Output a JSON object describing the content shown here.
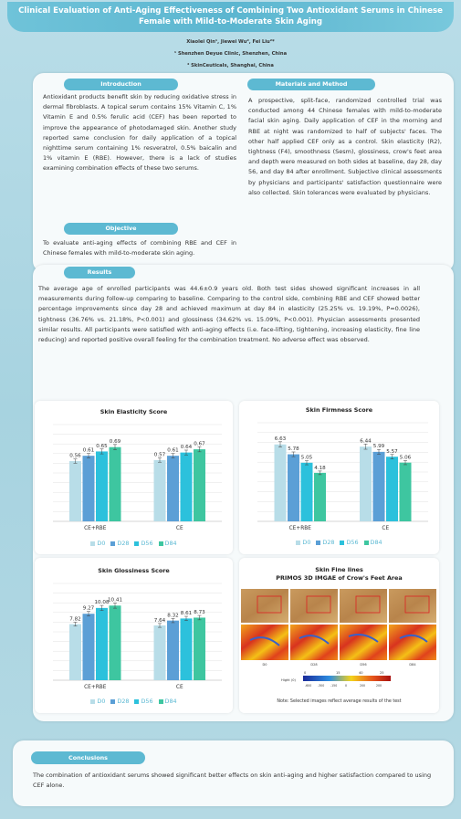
{
  "title_line1": "Clinical Evaluation of Anti-Aging Effectiveness of Combining Two Antioxidant Serums in Chinese",
  "title_line2": "Female with Mild-to-Moderate Skin Aging",
  "authors": "Xiaolei Qin¹, Jiewei Wu², Fei Liu²*",
  "affil1": "¹ Shenzhen Deyue Clinic, Shenzhen, China",
  "affil2": "² SkinCeuticals, Shanghai, China",
  "intro_label": "Introduction",
  "intro_text": "Antioxidant products benefit skin by reducing oxidative stress in dermal fibroblasts. A topical serum contains 15% Vitamin C, 1% Vitamin E and 0.5% ferulic acid (CEF) has been reported to improve the appearance of photodamaged skin. Another study reported same conclusion for daily application of a topical nighttime serum containing 1% resveratrol, 0.5% baicalin and 1% vitamin E (RBE). However, there is a lack of studies examining combination effects of these two serums.",
  "objective_label": "Objective",
  "objective_text": "To evaluate anti-aging effects of combining RBE and CEF in Chinese females with mild-to-moderate skin aging.",
  "methods_label": "Materials and Method",
  "methods_text": "A prospective, split-face, randomized controlled trial was conducted among 44 Chinese females with mild-to-moderate facial skin aging. Daily application of CEF in the morning and RBE at night was randomized to half of subjects' faces. The other half applied CEF only as a control. Skin elasticity (R2), tightness (F4), smoothness (Sesm), glossiness, crow's feet area and depth were measured on both sides at baseline, day 28, day 56, and day 84 after enrollment. Subjective clinical assessments by physicians and participants' satisfaction questionnaire were also collected. Skin tolerances were evaluated by physicians.",
  "results_label": "Results",
  "results_text": "The average age of enrolled participants was 44.6±0.9 years old. Both test sides showed significant increases in all measurements during follow-up comparing to baseline. Comparing to the control side, combining RBE and CEF showed better percentage improvements since day 28 and achieved maximum at day 84 in elasticity (25.25% vs. 19.19%, P=0.0026), tightness (36.76% vs. 21.18%, P<0.001) and glossiness (34.62% vs. 15.09%, P<0.001). Physician assessments presented similar results. All participants were satisfied with anti-aging effects (i.e. face-lifting, tightening, increasing elasticity, fine line reducing) and reported positive overall feeling for the combination treatment. No adverse effect was observed.",
  "colors": {
    "D0": "#b8dde8",
    "D28": "#5b9fd6",
    "D56": "#2cc1dc",
    "D84": "#3ec6a0"
  },
  "legend": [
    "D0",
    "D28",
    "D56",
    "D84"
  ],
  "chart_data": [
    {
      "type": "bar",
      "title": "Skin Elasticity Score",
      "categories": [
        "CE+RBE",
        "CE"
      ],
      "series": [
        {
          "name": "D0",
          "values": [
            0.56,
            0.57
          ]
        },
        {
          "name": "D28",
          "values": [
            0.61,
            0.61
          ]
        },
        {
          "name": "D56",
          "values": [
            0.65,
            0.64
          ]
        },
        {
          "name": "D84",
          "values": [
            0.69,
            0.67
          ]
        }
      ],
      "labels": [
        [
          "0.56",
          "0.61",
          "0.65",
          "0.69"
        ],
        [
          "0.57",
          "0.61",
          "0.64",
          "0.67"
        ]
      ],
      "ylim": [
        0,
        0.9
      ]
    },
    {
      "type": "bar",
      "title": "Skin Firmness Score",
      "categories": [
        "CE+RBE",
        "CE"
      ],
      "series": [
        {
          "name": "D0",
          "values": [
            6.63,
            6.44
          ]
        },
        {
          "name": "D28",
          "values": [
            5.78,
            5.99
          ]
        },
        {
          "name": "D56",
          "values": [
            5.05,
            5.57
          ]
        },
        {
          "name": "D84",
          "values": [
            4.18,
            5.06
          ]
        }
      ],
      "labels": [
        [
          "6.63",
          "5.78",
          "5.05",
          "4.18"
        ],
        [
          "6.44",
          "5.99",
          "5.57",
          "5.06"
        ]
      ],
      "ylim": [
        0,
        8.5
      ]
    },
    {
      "type": "bar",
      "title": "Skin Glossiness Score",
      "categories": [
        "CE+RBE",
        "CE"
      ],
      "series": [
        {
          "name": "D0",
          "values": [
            7.82,
            7.64
          ]
        },
        {
          "name": "D28",
          "values": [
            9.27,
            8.32
          ]
        },
        {
          "name": "D56",
          "values": [
            10.08,
            8.61
          ]
        },
        {
          "name": "D84",
          "values": [
            10.41,
            8.73
          ]
        }
      ],
      "labels": [
        [
          "7.82",
          "9.27",
          "10.08",
          "10.41"
        ],
        [
          "7.64",
          "8.32",
          "8.61",
          "8.73"
        ]
      ],
      "ylim": [
        0,
        13.5
      ]
    }
  ],
  "fine_title1": "Skin Fine lines",
  "fine_title2": "PRIMOS 3D IMGAE of Crow's Feet Area",
  "img_labels": [
    "D0",
    "D28",
    "D56",
    "D84"
  ],
  "scale_ticks": [
    "0",
    "15",
    "40",
    "25"
  ],
  "scale_label": "Hight (0)",
  "scale_ticks2": [
    "-600",
    "-300",
    "-150",
    "0",
    "200",
    "200"
  ],
  "fine_note": "Note: Selected images reflect average results of the test",
  "conclusions_label": "Conclusions",
  "conclusions_text": "The combination of antioxidant serums showed significant better effects on skin anti-aging and higher satisfaction compared to using CEF alone."
}
